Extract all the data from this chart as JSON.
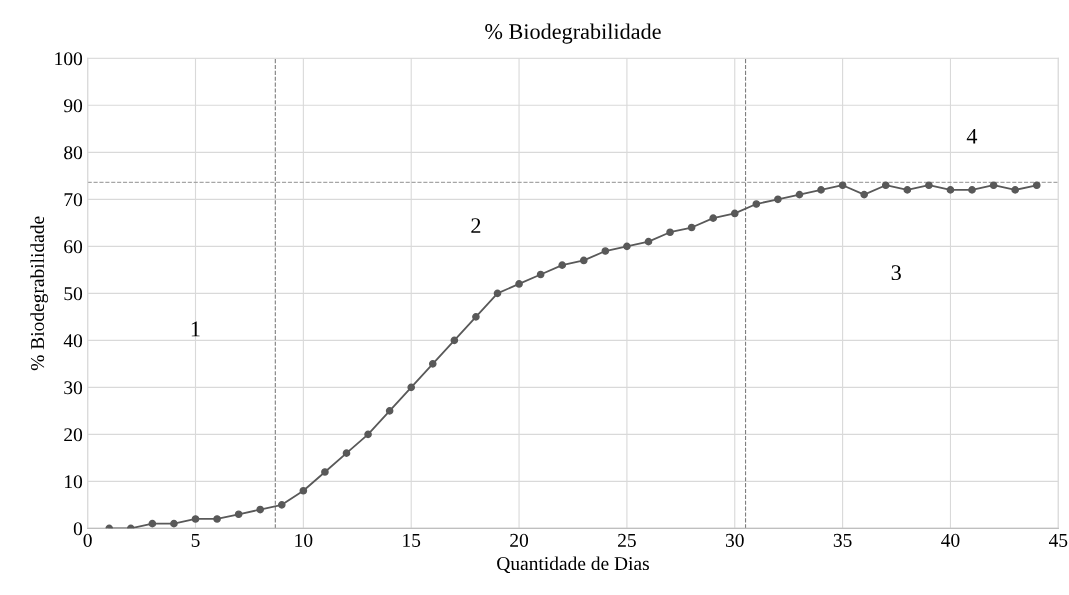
{
  "chart_data": {
    "type": "line",
    "title": "% Biodegrabilidade",
    "xlabel": "Quantidade de Dias",
    "ylabel": "% Biodegrabilidade",
    "x": [
      1,
      2,
      3,
      4,
      5,
      6,
      7,
      8,
      9,
      10,
      11,
      12,
      13,
      14,
      15,
      16,
      17,
      18,
      19,
      20,
      21,
      22,
      23,
      24,
      25,
      26,
      27,
      28,
      29,
      30,
      31,
      32,
      33,
      34,
      35,
      36,
      37,
      38,
      39,
      40,
      41,
      42,
      43,
      44
    ],
    "series": [
      {
        "color": "#595959",
        "values": [
          0,
          0,
          1,
          1,
          2,
          2,
          3,
          4,
          5,
          8,
          12,
          16,
          20,
          25,
          30,
          35,
          40,
          45,
          50,
          52,
          54,
          56,
          57,
          59,
          60,
          61,
          63,
          64,
          66,
          67,
          69,
          70,
          71,
          72,
          73,
          71,
          73,
          72,
          73,
          72,
          72,
          73,
          72,
          73
        ]
      }
    ],
    "xlim": [
      0,
      45
    ],
    "xticks": [
      0,
      5,
      10,
      15,
      20,
      25,
      30,
      35,
      40,
      45
    ],
    "ylim": [
      0,
      100
    ],
    "yticks": [
      0,
      10,
      20,
      30,
      40,
      50,
      60,
      70,
      80,
      90,
      100
    ],
    "grid": true,
    "marker": "circle",
    "line_style": "solid",
    "ref_lines": [
      {
        "axis": "x",
        "value": 8.7,
        "color": "#7f7f7f",
        "line_style": "dashed"
      },
      {
        "axis": "x",
        "value": 30.5,
        "color": "#7f7f7f",
        "line_style": "dashed"
      },
      {
        "axis": "y",
        "value": 73.6,
        "color": "#a6a6a6",
        "line_style": "dashed"
      }
    ],
    "annotations": [
      "1",
      "2",
      "3",
      "4"
    ]
  }
}
